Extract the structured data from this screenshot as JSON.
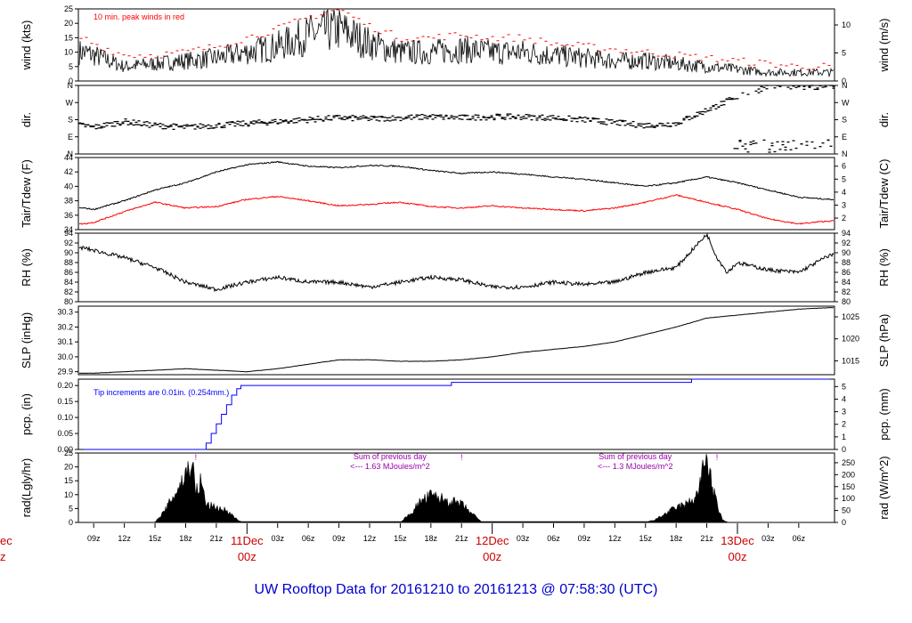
{
  "title": "UW Rooftop Data for 20161210  to  20161213 @ 07:58:30  (UTC)",
  "colors": {
    "title": "#0000cc",
    "peak": "#ff0000",
    "dew": "#ff0000",
    "precip": "#0000ff",
    "note": "#9900aa",
    "date": "#cc0000",
    "line": "#000000"
  },
  "time_axis": {
    "hour_ticks": [
      "09z",
      "12z",
      "15z",
      "18z",
      "21z",
      "03z",
      "06z",
      "09z",
      "12z",
      "15z",
      "18z",
      "21z",
      "03z",
      "06z",
      "09z",
      "12z",
      "15z",
      "18z",
      "21z",
      "03z",
      "06z"
    ],
    "hour_positions": [
      0,
      3,
      6,
      9,
      12,
      18,
      21,
      24,
      27,
      30,
      33,
      36,
      42,
      45,
      48,
      51,
      54,
      57,
      60,
      66,
      69
    ],
    "day_labels": [
      {
        "date": "11Dec",
        "time": "00z",
        "t": 15
      },
      {
        "date": "12Dec",
        "time": "00z",
        "t": 39
      },
      {
        "date": "13Dec",
        "time": "00z",
        "t": 63
      }
    ],
    "left_cut": {
      "date": "ec",
      "time": "z"
    }
  },
  "chart_data": [
    {
      "type": "line",
      "panel": "wind",
      "ylabel_left": "wind (kts)",
      "ylabel_right": "wind (m/s)",
      "yticks_left": [
        "0",
        "5",
        "10",
        "15",
        "20",
        "25"
      ],
      "ylim": [
        0,
        25
      ],
      "yticks_right": [
        "0",
        "5",
        "10"
      ],
      "annotation": "10 min. peak winds in red",
      "series": [
        {
          "key": "speed",
          "x": [
            -1,
            0,
            3,
            6,
            9,
            12,
            15,
            18,
            21,
            24,
            27,
            30,
            33,
            36,
            39,
            42,
            45,
            48,
            51,
            54,
            57,
            60,
            63,
            66,
            69,
            72
          ],
          "values": [
            10,
            9,
            5,
            6,
            7,
            8,
            10,
            12,
            16,
            18,
            13,
            10,
            10,
            11,
            10,
            10,
            9,
            8,
            7,
            7,
            6,
            5,
            4,
            3,
            3,
            3
          ]
        },
        {
          "key": "peak",
          "x": [
            -1,
            0,
            3,
            6,
            9,
            12,
            15,
            18,
            21,
            24,
            27,
            30,
            33,
            36,
            39,
            42,
            45,
            48,
            51,
            54,
            57,
            60,
            63,
            66,
            69,
            72
          ],
          "values": [
            15,
            13,
            9,
            9,
            10,
            12,
            15,
            18,
            22,
            25,
            19,
            15,
            15,
            16,
            15,
            15,
            13,
            12,
            11,
            10,
            9,
            8,
            7,
            6,
            5,
            5
          ]
        }
      ]
    },
    {
      "type": "scatter",
      "panel": "dir",
      "ylabel_left": "dir.",
      "ylabel_right": "dir.",
      "yticks": [
        "N",
        "E",
        "S",
        "W",
        "N"
      ],
      "ylim": [
        0,
        360
      ],
      "series": [
        {
          "key": "dir",
          "x": [
            -1,
            0,
            3,
            6,
            9,
            12,
            15,
            18,
            21,
            24,
            27,
            30,
            33,
            36,
            39,
            42,
            45,
            48,
            51,
            54,
            57,
            60,
            63,
            66,
            69,
            72
          ],
          "values": [
            150,
            140,
            170,
            150,
            140,
            150,
            160,
            170,
            180,
            190,
            185,
            190,
            195,
            190,
            195,
            195,
            190,
            180,
            165,
            150,
            160,
            230,
            300,
            350,
            350,
            350
          ]
        }
      ]
    },
    {
      "type": "line",
      "panel": "temp",
      "ylabel_left": "Tair/Tdew (F)",
      "ylabel_right": "Tair/Tdew (C)",
      "yticks_left": [
        "34",
        "36",
        "38",
        "40",
        "42",
        "44"
      ],
      "ylim": [
        34,
        44
      ],
      "yticks_right": [
        "2",
        "3",
        "4",
        "5",
        "6"
      ],
      "series": [
        {
          "key": "tair",
          "x": [
            -1,
            0,
            3,
            6,
            9,
            12,
            15,
            18,
            21,
            24,
            27,
            30,
            33,
            36,
            39,
            42,
            45,
            48,
            51,
            54,
            57,
            60,
            63,
            66,
            69,
            72
          ],
          "values": [
            37,
            36.8,
            38,
            39.5,
            40.5,
            42,
            43,
            43.4,
            42.8,
            42.6,
            42.9,
            42.8,
            42.2,
            41.8,
            42.0,
            41.7,
            41.3,
            41.0,
            40.5,
            40.0,
            40.5,
            41.3,
            40.5,
            39.5,
            38.5,
            38.2
          ]
        },
        {
          "key": "tdew",
          "x": [
            -1,
            0,
            3,
            6,
            9,
            12,
            15,
            18,
            21,
            24,
            27,
            30,
            33,
            36,
            39,
            42,
            45,
            48,
            51,
            54,
            57,
            60,
            63,
            66,
            69,
            72
          ],
          "values": [
            34.8,
            35.0,
            36.5,
            37.8,
            37.0,
            37.2,
            38.2,
            38.6,
            38.0,
            37.3,
            37.5,
            37.8,
            37.2,
            37.0,
            37.3,
            37.0,
            36.8,
            36.6,
            37.0,
            37.8,
            38.8,
            37.8,
            36.8,
            35.5,
            34.8,
            35.2
          ]
        }
      ]
    },
    {
      "type": "line",
      "panel": "rh",
      "ylabel_left": "RH (%)",
      "ylabel_right": "RH (%)",
      "yticks": [
        "80",
        "82",
        "84",
        "86",
        "88",
        "90",
        "92",
        "94"
      ],
      "ylim": [
        80,
        94
      ],
      "series": [
        {
          "key": "rh",
          "x": [
            -1,
            0,
            3,
            6,
            9,
            12,
            15,
            18,
            21,
            24,
            27,
            30,
            33,
            36,
            39,
            42,
            45,
            48,
            51,
            54,
            57,
            60,
            61,
            62,
            63,
            66,
            69,
            72
          ],
          "values": [
            91,
            90.5,
            89,
            87,
            84,
            82.5,
            84,
            85,
            84,
            84,
            83,
            84,
            85,
            84.5,
            83,
            83,
            84,
            83.5,
            84,
            86,
            87,
            93.8,
            89,
            86,
            88,
            86.5,
            86,
            89.5
          ]
        }
      ]
    },
    {
      "type": "line",
      "panel": "slp",
      "ylabel_left": "SLP (inHg)",
      "ylabel_right": "SLP (hPa)",
      "yticks_left": [
        "29.9",
        "30.0",
        "30.1",
        "30.2",
        "30.3"
      ],
      "ylim": [
        29.88,
        30.34
      ],
      "yticks_right": [
        "1015",
        "1020",
        "1025"
      ],
      "series": [
        {
          "key": "slp",
          "x": [
            -1,
            0,
            3,
            6,
            9,
            12,
            15,
            18,
            21,
            24,
            27,
            30,
            33,
            36,
            39,
            42,
            45,
            48,
            51,
            54,
            57,
            60,
            63,
            66,
            69,
            72
          ],
          "values": [
            29.89,
            29.89,
            29.9,
            29.91,
            29.92,
            29.91,
            29.9,
            29.92,
            29.95,
            29.98,
            29.98,
            29.97,
            29.97,
            29.98,
            30.0,
            30.03,
            30.05,
            30.07,
            30.1,
            30.15,
            30.2,
            30.26,
            30.28,
            30.3,
            30.32,
            30.33
          ]
        }
      ]
    },
    {
      "type": "line",
      "panel": "pcp",
      "ylabel_left": "pcp. (in)",
      "ylabel_right": "pcp. (mm)",
      "yticks_left": [
        "0.00",
        "0.05",
        "0.10",
        "0.15",
        "0.20"
      ],
      "ylim": [
        0,
        0.22
      ],
      "yticks_right": [
        "0",
        "1",
        "2",
        "3",
        "4",
        "5"
      ],
      "annotation": "Tip increments are 0.01in. (0.254mm.)",
      "series": [
        {
          "key": "precip",
          "x": [
            -1,
            10.6,
            11,
            11.5,
            12,
            12.5,
            13,
            13.5,
            14,
            14.4,
            35,
            35.01,
            58.5,
            58.51,
            72
          ],
          "values": [
            0,
            0,
            0.02,
            0.05,
            0.08,
            0.11,
            0.14,
            0.17,
            0.19,
            0.2,
            0.2,
            0.21,
            0.21,
            0.22,
            0.22
          ]
        }
      ]
    },
    {
      "type": "area",
      "panel": "rad",
      "ylabel_left": "rad(Lgly/hr)",
      "ylabel_right": "rad (W/m^2)",
      "yticks_left": [
        "0",
        "5",
        "10",
        "15",
        "20",
        "25"
      ],
      "ylim": [
        0,
        25
      ],
      "yticks_right": [
        "0",
        "50",
        "100",
        "150",
        "200",
        "250"
      ],
      "annotations": [
        {
          "l1": "Sum of previous day",
          "l2": "<--- 1.63 MJoules/m^2",
          "t": 29
        },
        {
          "l1": "Sum of previous day",
          "l2": "<--- 1.3 MJoules/m^2",
          "t": 53
        }
      ],
      "noon_marks": [
        10,
        36,
        61
      ],
      "series": [
        {
          "key": "rad",
          "x": [
            6,
            7,
            8,
            9,
            9.6,
            10,
            10.5,
            11,
            12,
            13,
            14,
            14.5,
            30,
            31,
            32,
            33,
            34,
            35,
            36,
            37,
            38,
            54,
            55,
            56,
            57,
            58,
            59,
            59.5,
            60,
            60.5,
            61,
            61.5,
            62
          ],
          "values": [
            0,
            4,
            10,
            16,
            21,
            10,
            14,
            6,
            5,
            4,
            1,
            0,
            0,
            3,
            7,
            9,
            8,
            7,
            6,
            3,
            0,
            0,
            1,
            3,
            5,
            6,
            9,
            15,
            24,
            12,
            6,
            1,
            0
          ]
        }
      ]
    }
  ]
}
